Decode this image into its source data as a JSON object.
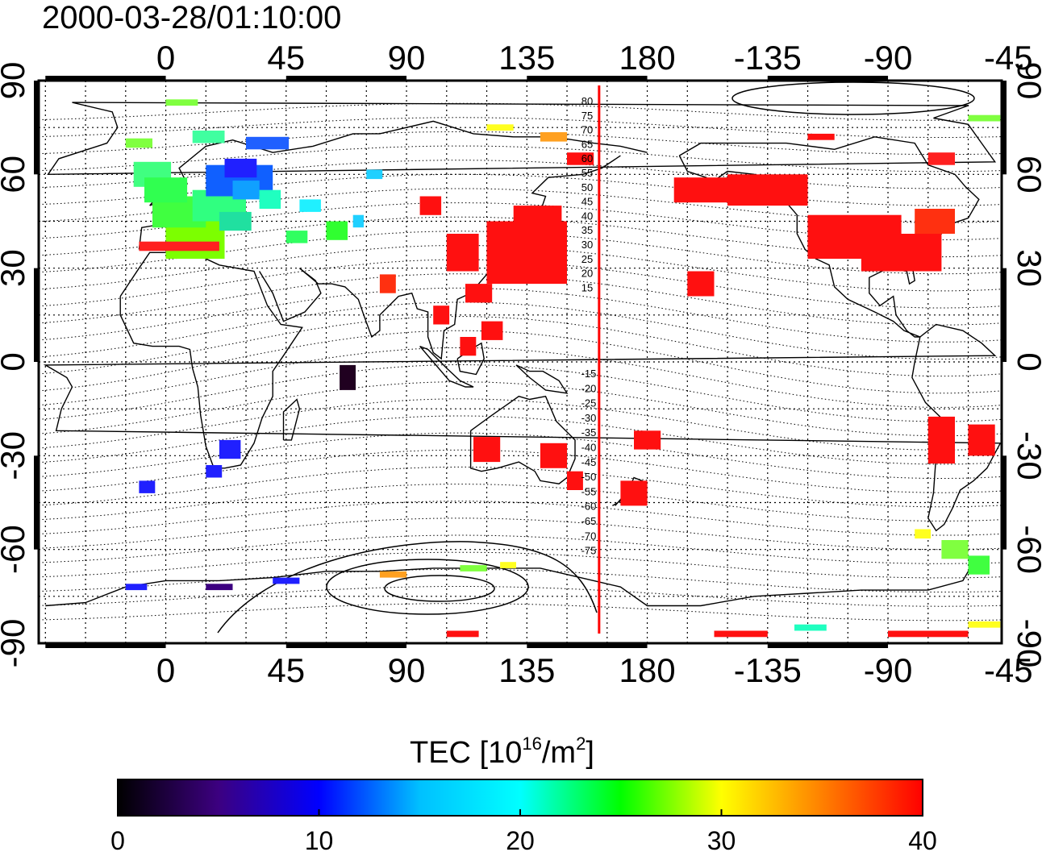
{
  "title": "2000-03-28/01:10:00",
  "colorbar": {
    "label_prefix": "TEC  [10",
    "label_exp1": "16",
    "label_mid": "/m",
    "label_exp2": "2",
    "label_suffix": "]",
    "ticks": [
      0,
      10,
      20,
      30,
      40
    ],
    "min": 0,
    "max": 40,
    "colors": [
      "#000000",
      "#3c0080",
      "#0000ff",
      "#00c0ff",
      "#00ffff",
      "#00ff00",
      "#ffff00",
      "#ff8000",
      "#ff0000"
    ]
  },
  "map": {
    "lon_ticks_top": [
      "0",
      "45",
      "90",
      "135",
      "180",
      "-135",
      "-90",
      "-45"
    ],
    "lon_ticks_bottom": [
      "0",
      "45",
      "90",
      "135",
      "180",
      "-135",
      "-90",
      "-45"
    ],
    "lat_ticks_left": [
      "90",
      "60",
      "30",
      "0",
      "-30",
      "-60",
      "-90"
    ],
    "lat_ticks_right": [
      "90",
      "60",
      "30",
      "0",
      "-30",
      "-60",
      "-90"
    ],
    "contour_labels_north": [
      "80",
      "75",
      "70",
      "65",
      "60",
      "55",
      "50",
      "45",
      "40",
      "35",
      "30",
      "25",
      "20",
      "15"
    ],
    "contour_labels_south": [
      "-15",
      "-20",
      "-25",
      "-30",
      "-35",
      "-40",
      "-45",
      "-50",
      "-55",
      "-60",
      "-65",
      "-70",
      "-75"
    ],
    "terminator_color": "#ff0000",
    "coast_color": "#000000"
  }
}
